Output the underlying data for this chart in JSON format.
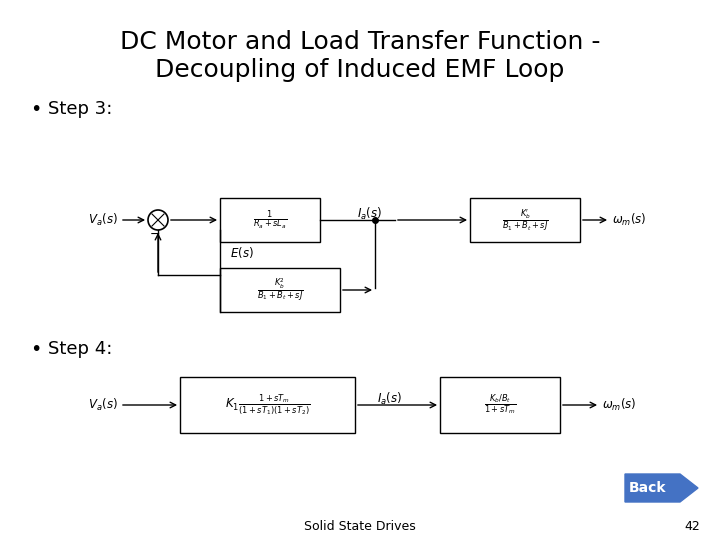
{
  "title_line1": "DC Motor and Load Transfer Function -",
  "title_line2": "Decoupling of Induced EMF Loop",
  "step3_label": "Step 3:",
  "step4_label": "Step 4:",
  "footer_text": "Solid State Drives",
  "page_number": "42",
  "back_button_text": "Back",
  "background_color": "#ffffff",
  "title_fontsize": 18,
  "label_fontsize": 11,
  "block_fontsize": 9,
  "footer_fontsize": 9,
  "back_button_color": "#4472C4",
  "back_button_text_color": "#ffffff"
}
